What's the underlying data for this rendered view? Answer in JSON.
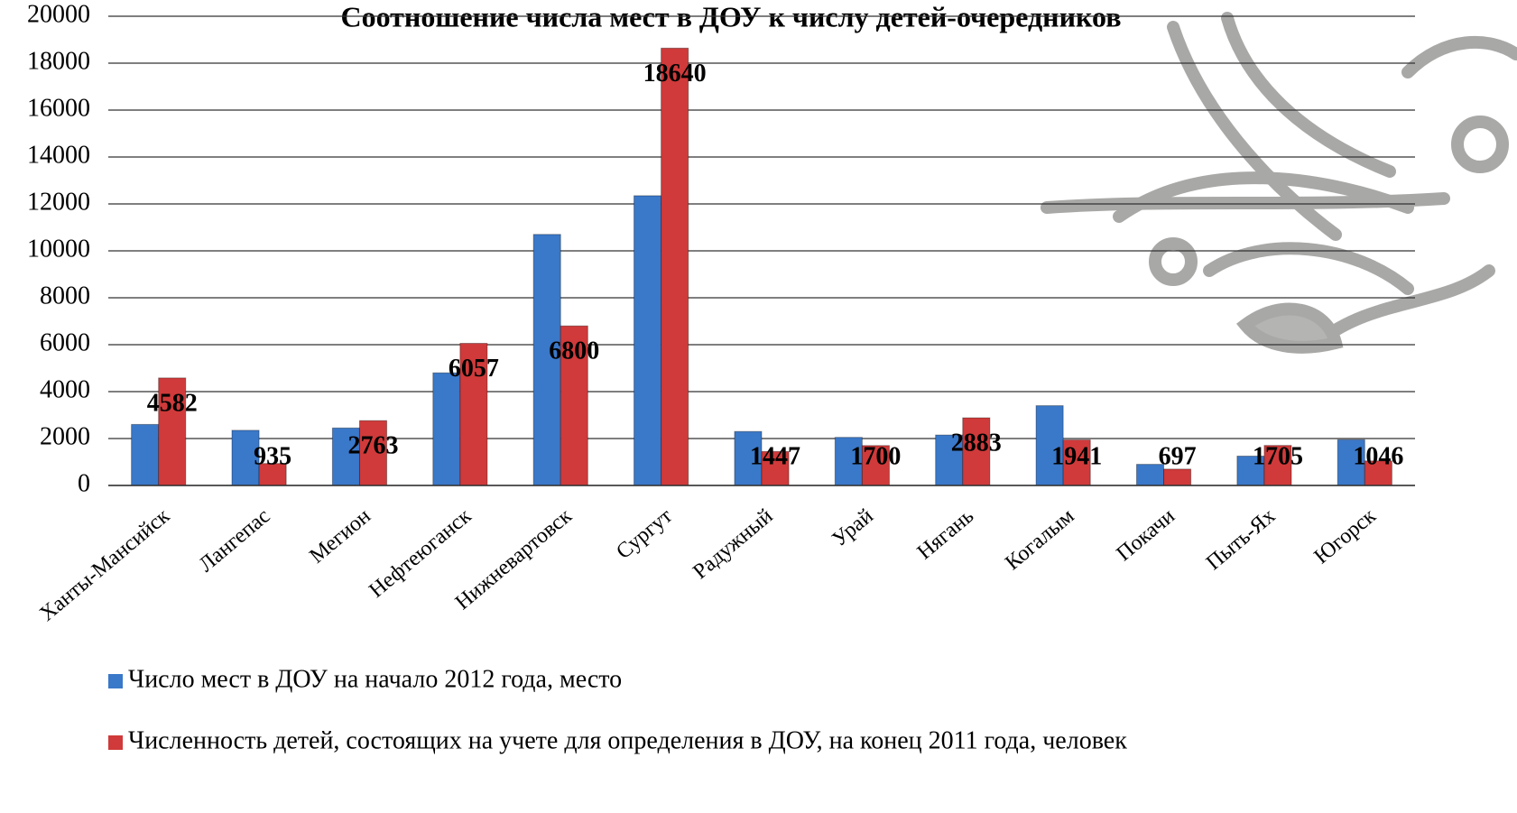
{
  "chart_data": {
    "type": "bar",
    "title": "Соотношение числа мест в ДОУ  к числу детей-очередников",
    "categories": [
      "Ханты-Мансийск",
      "Лангепас",
      "Мегион",
      "Нефтеюганск",
      "Нижневартовск",
      "Сургут",
      "Радужный",
      "Урай",
      "Нягань",
      "Когалым",
      "Покачи",
      "Пыть-Ях",
      "Югорск"
    ],
    "series": [
      {
        "name": "Число мест в ДОУ на начало 2012 года, место",
        "color": "#3a78c9",
        "values": [
          2600,
          2350,
          2450,
          4800,
          10700,
          12350,
          2300,
          2050,
          2150,
          3400,
          900,
          1250,
          1950
        ]
      },
      {
        "name": "Численность детей, состоящих на учете для определения в ДОУ, на конец 2011 года, человек",
        "color": "#d03a3a",
        "values": [
          4582,
          935,
          2763,
          6057,
          6800,
          18640,
          1447,
          1700,
          2883,
          1941,
          697,
          1705,
          1046
        ]
      }
    ],
    "ylim": [
      0,
      20000
    ],
    "yticks": [
      0,
      2000,
      4000,
      6000,
      8000,
      10000,
      12000,
      14000,
      16000,
      18000,
      20000
    ],
    "grid": true,
    "legend": "bottom"
  }
}
